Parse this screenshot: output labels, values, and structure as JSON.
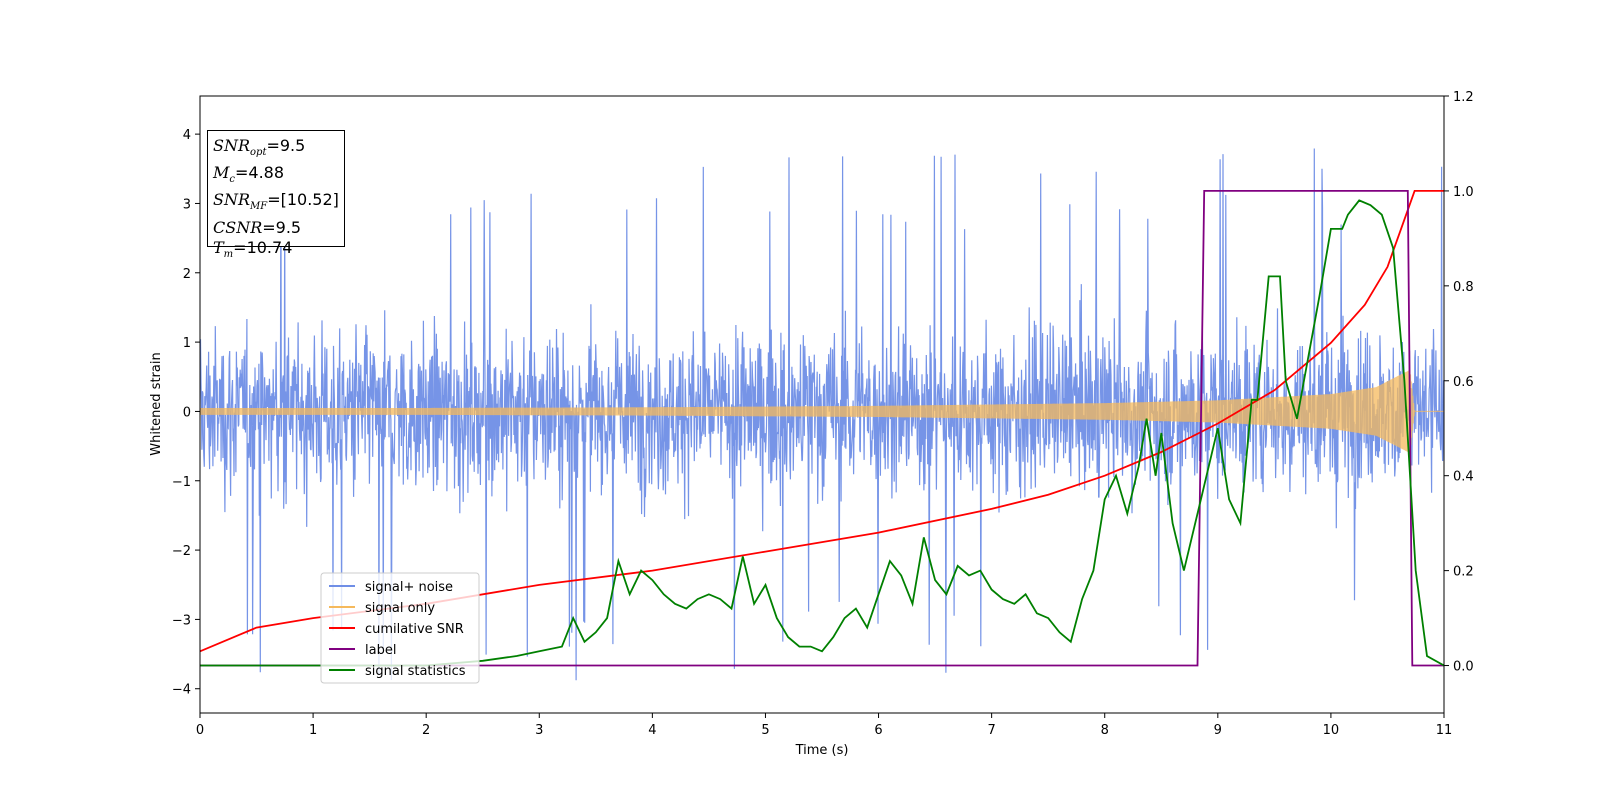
{
  "chart_data": {
    "type": "line",
    "xlabel": "Time (s)",
    "ylabel": "Whitened strain",
    "xlim": [
      0,
      11
    ],
    "ylim_left": [
      -4.35,
      4.55
    ],
    "ylim_right": [
      -0.1,
      1.2
    ],
    "x_ticks": [
      "0",
      "1",
      "2",
      "3",
      "4",
      "5",
      "6",
      "7",
      "8",
      "9",
      "10",
      "11"
    ],
    "y_ticks_left": [
      "−4",
      "−3",
      "−2",
      "−1",
      "0",
      "1",
      "2",
      "3",
      "4"
    ],
    "y_ticks_right": [
      "0.0",
      "0.2",
      "0.4",
      "0.6",
      "0.8",
      "1.0",
      "1.2"
    ],
    "legend_position": "lower-left",
    "series": [
      {
        "name": "signal+ noise",
        "color": "#6f8ee6",
        "axis": "left",
        "description_values": {
          "amplitude_envelope": [
            -3.9,
            4.2
          ]
        }
      },
      {
        "name": "signal only",
        "color": "#f5b95c",
        "axis": "left",
        "envelope": {
          "x": [
            0,
            2,
            4,
            6,
            8,
            9,
            10,
            10.4,
            10.7,
            10.74,
            11
          ],
          "amp": [
            0.05,
            0.05,
            0.06,
            0.08,
            0.12,
            0.16,
            0.25,
            0.35,
            0.6,
            0,
            0
          ]
        }
      },
      {
        "name": "cumilative SNR",
        "color": "#ff0000",
        "axis": "right",
        "x": [
          0,
          0.5,
          1,
          2,
          3,
          4,
          5,
          6,
          7,
          7.5,
          8,
          8.5,
          9,
          9.5,
          10,
          10.3,
          10.5,
          10.74,
          11
        ],
        "y": [
          0.03,
          0.08,
          0.1,
          0.13,
          0.17,
          0.2,
          0.24,
          0.28,
          0.33,
          0.36,
          0.4,
          0.45,
          0.51,
          0.58,
          0.68,
          0.76,
          0.84,
          1.0,
          1.0
        ]
      },
      {
        "name": "label",
        "color": "#800080",
        "axis": "right",
        "x": [
          0,
          8.82,
          8.88,
          10.68,
          10.72,
          11
        ],
        "y": [
          0,
          0,
          1,
          1,
          0,
          0
        ]
      },
      {
        "name": "signal statistics",
        "color": "#008000",
        "axis": "right",
        "x": [
          0,
          1,
          2,
          2.5,
          2.8,
          3.0,
          3.2,
          3.3,
          3.4,
          3.5,
          3.6,
          3.7,
          3.8,
          3.9,
          4.0,
          4.1,
          4.2,
          4.3,
          4.4,
          4.5,
          4.6,
          4.7,
          4.8,
          4.9,
          5.0,
          5.1,
          5.2,
          5.3,
          5.4,
          5.5,
          5.6,
          5.7,
          5.8,
          5.9,
          6.0,
          6.1,
          6.2,
          6.3,
          6.4,
          6.5,
          6.6,
          6.7,
          6.8,
          6.9,
          7.0,
          7.1,
          7.2,
          7.3,
          7.4,
          7.5,
          7.6,
          7.7,
          7.8,
          7.9,
          8.0,
          8.1,
          8.2,
          8.3,
          8.37,
          8.45,
          8.5,
          8.6,
          8.7,
          8.85,
          9.0,
          9.1,
          9.2,
          9.3,
          9.35,
          9.45,
          9.55,
          9.6,
          9.7,
          9.8,
          9.9,
          10.0,
          10.1,
          10.15,
          10.25,
          10.35,
          10.45,
          10.55,
          10.65,
          10.75,
          10.85,
          11
        ],
        "y": [
          0.0,
          0.0,
          0.0,
          0.01,
          0.02,
          0.03,
          0.04,
          0.1,
          0.05,
          0.07,
          0.1,
          0.22,
          0.15,
          0.2,
          0.18,
          0.15,
          0.13,
          0.12,
          0.14,
          0.15,
          0.14,
          0.12,
          0.23,
          0.13,
          0.17,
          0.1,
          0.06,
          0.04,
          0.04,
          0.03,
          0.06,
          0.1,
          0.12,
          0.08,
          0.15,
          0.22,
          0.19,
          0.13,
          0.27,
          0.18,
          0.15,
          0.21,
          0.19,
          0.2,
          0.16,
          0.14,
          0.13,
          0.15,
          0.11,
          0.1,
          0.07,
          0.05,
          0.14,
          0.2,
          0.35,
          0.4,
          0.32,
          0.42,
          0.52,
          0.4,
          0.49,
          0.3,
          0.2,
          0.35,
          0.5,
          0.35,
          0.3,
          0.56,
          0.56,
          0.82,
          0.82,
          0.6,
          0.52,
          0.65,
          0.78,
          0.92,
          0.92,
          0.95,
          0.98,
          0.97,
          0.95,
          0.88,
          0.6,
          0.2,
          0.02,
          0.0
        ]
      }
    ]
  },
  "legend": {
    "items": [
      {
        "label": "signal+ noise",
        "color": "#6f8ee6"
      },
      {
        "label": "signal only",
        "color": "#f5b95c"
      },
      {
        "label": "cumilative SNR",
        "color": "#ff0000"
      },
      {
        "label": "label",
        "color": "#800080"
      },
      {
        "label": "signal statistics",
        "color": "#008000"
      }
    ]
  },
  "info_box": {
    "snr_opt": "9.5",
    "mc": "4.88",
    "snr_mf": "[10.52]",
    "csnr": "9.5",
    "tm": "10.74"
  }
}
